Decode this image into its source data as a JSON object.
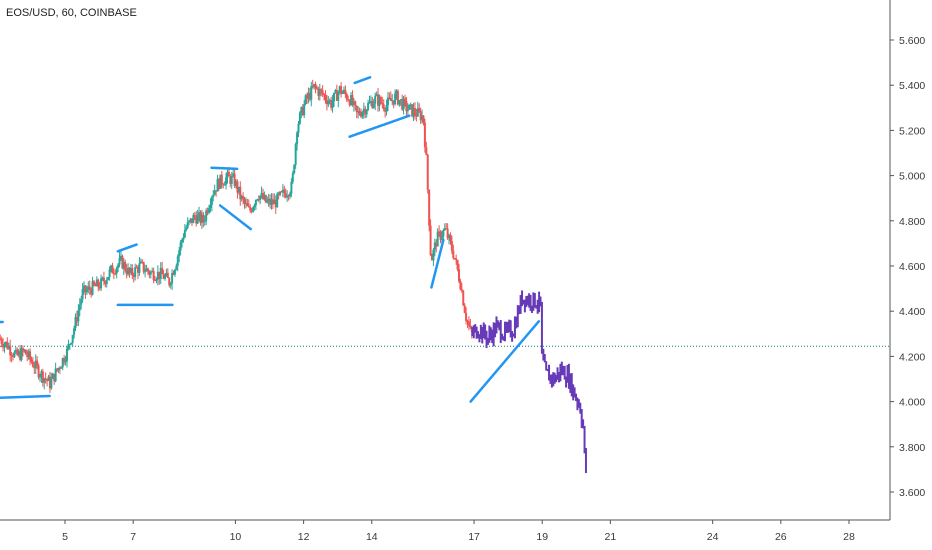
{
  "chart_data": {
    "type": "candlestick",
    "title": "EOS/USD, 60, COINBASE",
    "y_ticks": [
      "5.600",
      "5.400",
      "5.200",
      "5.000",
      "4.800",
      "4.600",
      "4.400",
      "4.200",
      "4.000",
      "3.800",
      "3.600"
    ],
    "y_tick_values": [
      5.6,
      5.4,
      5.2,
      5.0,
      4.8,
      4.6,
      4.4,
      4.2,
      4.0,
      3.8,
      3.6
    ],
    "x_ticks": [
      "5",
      "7",
      "10",
      "12",
      "14",
      "17",
      "19",
      "21",
      "24",
      "26",
      "28"
    ],
    "x_tick_days": [
      5,
      7,
      10,
      12,
      14,
      17,
      19,
      21,
      24,
      26,
      28
    ],
    "ylim": [
      3.52,
      5.76
    ],
    "xlim": [
      3.1,
      29.2
    ],
    "horizontal_level": 4.245,
    "colors": {
      "up": "#26a69a",
      "down": "#ef5350",
      "projection": "#673ab7",
      "drawings": "#2196f3",
      "level": "#0f7a6f"
    },
    "price_path": [
      [
        3.1,
        4.28
      ],
      [
        3.35,
        4.25
      ],
      [
        3.6,
        4.2
      ],
      [
        3.85,
        4.22
      ],
      [
        4.1,
        4.17
      ],
      [
        4.35,
        4.12
      ],
      [
        4.6,
        4.08
      ],
      [
        4.85,
        4.15
      ],
      [
        5.1,
        4.22
      ],
      [
        5.35,
        4.35
      ],
      [
        5.55,
        4.48
      ],
      [
        5.8,
        4.5
      ],
      [
        6.1,
        4.52
      ],
      [
        6.4,
        4.58
      ],
      [
        6.7,
        4.62
      ],
      [
        6.95,
        4.56
      ],
      [
        7.25,
        4.6
      ],
      [
        7.55,
        4.57
      ],
      [
        7.9,
        4.56
      ],
      [
        8.1,
        4.53
      ],
      [
        8.3,
        4.62
      ],
      [
        8.55,
        4.76
      ],
      [
        8.85,
        4.82
      ],
      [
        9.1,
        4.8
      ],
      [
        9.35,
        4.92
      ],
      [
        9.55,
        4.97
      ],
      [
        9.8,
        4.99
      ],
      [
        10.0,
        4.98
      ],
      [
        10.2,
        4.9
      ],
      [
        10.45,
        4.84
      ],
      [
        10.7,
        4.92
      ],
      [
        10.95,
        4.88
      ],
      [
        11.2,
        4.88
      ],
      [
        11.45,
        4.92
      ],
      [
        11.7,
        4.95
      ],
      [
        11.85,
        5.22
      ],
      [
        12.1,
        5.33
      ],
      [
        12.35,
        5.39
      ],
      [
        12.6,
        5.36
      ],
      [
        12.85,
        5.32
      ],
      [
        13.1,
        5.38
      ],
      [
        13.4,
        5.34
      ],
      [
        13.6,
        5.27
      ],
      [
        13.85,
        5.3
      ],
      [
        14.15,
        5.34
      ],
      [
        14.45,
        5.31
      ],
      [
        14.75,
        5.35
      ],
      [
        15.05,
        5.3
      ],
      [
        15.3,
        5.28
      ],
      [
        15.55,
        5.26
      ],
      [
        15.65,
        5.05
      ],
      [
        15.78,
        4.62
      ],
      [
        15.95,
        4.72
      ],
      [
        16.2,
        4.76
      ],
      [
        16.45,
        4.65
      ],
      [
        16.65,
        4.52
      ],
      [
        16.8,
        4.38
      ],
      [
        16.95,
        4.3
      ]
    ],
    "projection_path": [
      [
        16.95,
        4.3
      ],
      [
        17.2,
        4.32
      ],
      [
        17.45,
        4.28
      ],
      [
        17.7,
        4.33
      ],
      [
        17.95,
        4.3
      ],
      [
        18.2,
        4.32
      ],
      [
        18.45,
        4.46
      ],
      [
        18.7,
        4.45
      ],
      [
        18.9,
        4.44
      ],
      [
        19.0,
        4.42
      ],
      [
        19.02,
        4.2
      ],
      [
        19.15,
        4.12
      ],
      [
        19.4,
        4.1
      ],
      [
        19.6,
        4.14
      ],
      [
        19.8,
        4.11
      ],
      [
        20.0,
        4.03
      ],
      [
        20.15,
        3.98
      ],
      [
        20.25,
        3.88
      ],
      [
        20.3,
        3.7
      ]
    ],
    "drawings": [
      [
        [
          3.1,
          4.017
        ],
        [
          4.55,
          4.025
        ]
      ],
      [
        [
          3.1,
          4.352
        ],
        [
          3.17,
          4.352
        ]
      ],
      [
        [
          6.55,
          4.428
        ],
        [
          8.15,
          4.428
        ]
      ],
      [
        [
          6.55,
          4.665
        ],
        [
          7.1,
          4.695
        ]
      ],
      [
        [
          9.3,
          5.035
        ],
        [
          10.05,
          5.03
        ]
      ],
      [
        [
          9.55,
          4.868
        ],
        [
          10.45,
          4.763
        ]
      ],
      [
        [
          13.35,
          5.172
        ],
        [
          15.1,
          5.265
        ]
      ],
      [
        [
          13.5,
          5.41
        ],
        [
          13.95,
          5.435
        ]
      ],
      [
        [
          15.75,
          4.505
        ],
        [
          16.1,
          4.715
        ]
      ],
      [
        [
          16.9,
          4.0
        ],
        [
          18.9,
          4.355
        ]
      ]
    ]
  }
}
